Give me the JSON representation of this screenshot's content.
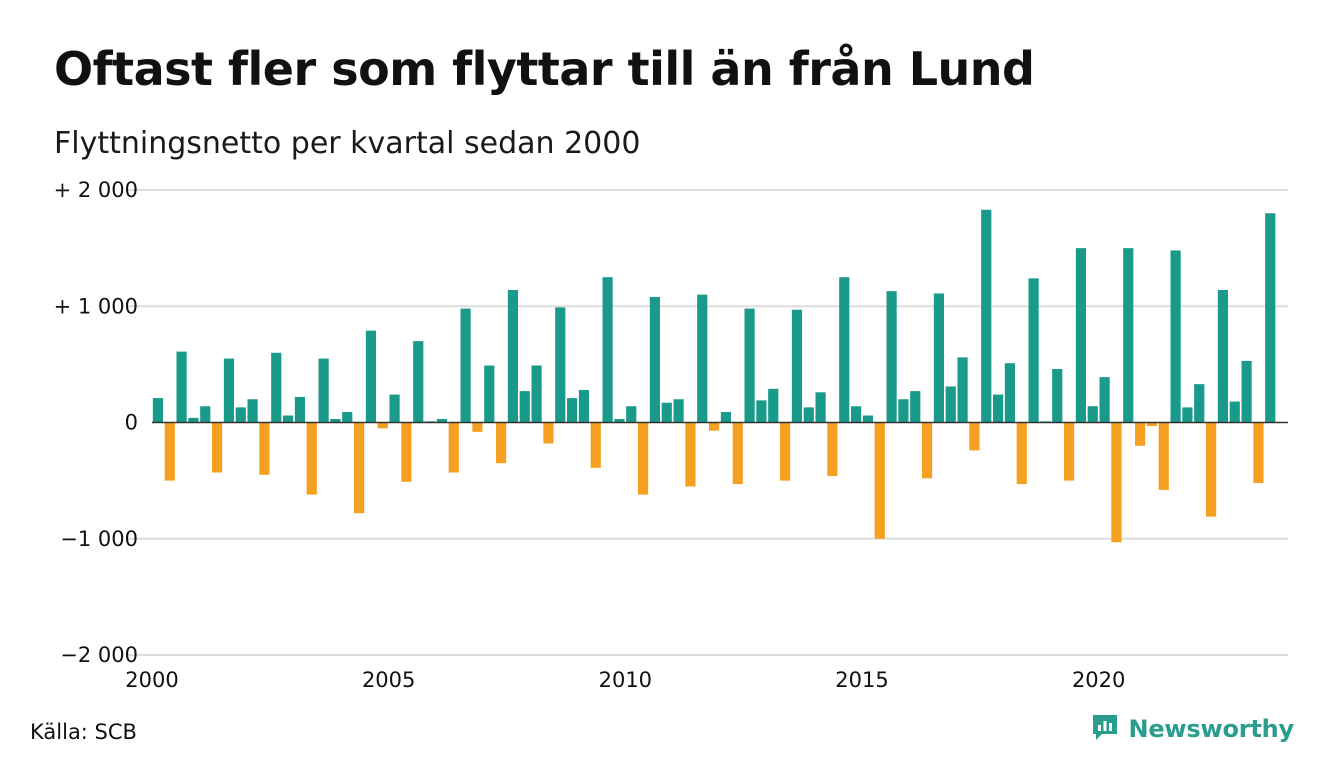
{
  "header": {
    "title": "Oftast fler som flyttar till än från Lund",
    "subtitle": "Flyttningsnetto per kvartal sedan 2000"
  },
  "footer": {
    "source": "Källa: SCB",
    "brand": "Newsworthy"
  },
  "colors": {
    "positive": "#1a9a8a",
    "negative": "#f5a020",
    "grid": "#dddddd",
    "brand": "#2a9d8f"
  },
  "chart_data": {
    "type": "bar",
    "title": "Oftast fler som flyttar till än från Lund",
    "subtitle": "Flyttningsnetto per kvartal sedan 2000",
    "xlabel": "",
    "ylabel": "",
    "ylim": [
      -2000,
      2000
    ],
    "xlim": [
      2000,
      2024
    ],
    "grid": true,
    "legend": "none",
    "y_ticks": [
      {
        "value": 2000,
        "label": "+ 2 000"
      },
      {
        "value": 1000,
        "label": "+ 1 000"
      },
      {
        "value": 0,
        "label": "0"
      },
      {
        "value": -1000,
        "label": "−1 000"
      },
      {
        "value": -2000,
        "label": "−2 000"
      }
    ],
    "x_ticks": [
      {
        "value": 2000,
        "label": "2000"
      },
      {
        "value": 2005,
        "label": "2005"
      },
      {
        "value": 2010,
        "label": "2010"
      },
      {
        "value": 2015,
        "label": "2015"
      },
      {
        "value": 2020,
        "label": "2020"
      }
    ],
    "quarters": [
      "2000-Q1",
      "2000-Q2",
      "2000-Q3",
      "2000-Q4",
      "2001-Q1",
      "2001-Q2",
      "2001-Q3",
      "2001-Q4",
      "2002-Q1",
      "2002-Q2",
      "2002-Q3",
      "2002-Q4",
      "2003-Q1",
      "2003-Q2",
      "2003-Q3",
      "2003-Q4",
      "2004-Q1",
      "2004-Q2",
      "2004-Q3",
      "2004-Q4",
      "2005-Q1",
      "2005-Q2",
      "2005-Q3",
      "2005-Q4",
      "2006-Q1",
      "2006-Q2",
      "2006-Q3",
      "2006-Q4",
      "2007-Q1",
      "2007-Q2",
      "2007-Q3",
      "2007-Q4",
      "2008-Q1",
      "2008-Q2",
      "2008-Q3",
      "2008-Q4",
      "2009-Q1",
      "2009-Q2",
      "2009-Q3",
      "2009-Q4",
      "2010-Q1",
      "2010-Q2",
      "2010-Q3",
      "2010-Q4",
      "2011-Q1",
      "2011-Q2",
      "2011-Q3",
      "2011-Q4",
      "2012-Q1",
      "2012-Q2",
      "2012-Q3",
      "2012-Q4",
      "2013-Q1",
      "2013-Q2",
      "2013-Q3",
      "2013-Q4",
      "2014-Q1",
      "2014-Q2",
      "2014-Q3",
      "2014-Q4",
      "2015-Q1",
      "2015-Q2",
      "2015-Q3",
      "2015-Q4",
      "2016-Q1",
      "2016-Q2",
      "2016-Q3",
      "2016-Q4",
      "2017-Q1",
      "2017-Q2",
      "2017-Q3",
      "2017-Q4",
      "2018-Q1",
      "2018-Q2",
      "2018-Q3",
      "2018-Q4",
      "2019-Q1",
      "2019-Q2",
      "2019-Q3",
      "2019-Q4",
      "2020-Q1",
      "2020-Q2",
      "2020-Q3",
      "2020-Q4",
      "2021-Q1",
      "2021-Q2",
      "2021-Q3",
      "2021-Q4",
      "2022-Q1",
      "2022-Q2",
      "2022-Q3",
      "2022-Q4",
      "2023-Q1",
      "2023-Q2",
      "2023-Q3",
      "2023-Q4"
    ],
    "values": [
      210,
      -500,
      610,
      40,
      140,
      -430,
      550,
      130,
      200,
      -450,
      600,
      60,
      220,
      -620,
      550,
      30,
      90,
      -780,
      790,
      -50,
      240,
      -510,
      700,
      10,
      30,
      -430,
      980,
      -80,
      490,
      -350,
      1140,
      270,
      490,
      -180,
      990,
      210,
      280,
      -390,
      1250,
      30,
      140,
      -620,
      1080,
      170,
      200,
      -550,
      1100,
      -70,
      90,
      -530,
      980,
      190,
      290,
      -500,
      970,
      130,
      260,
      -460,
      1250,
      140,
      60,
      -1000,
      1130,
      200,
      270,
      -480,
      1110,
      310,
      560,
      -240,
      1830,
      240,
      510,
      -530,
      1240,
      10,
      460,
      -500,
      1500,
      140,
      390,
      -1030,
      1500,
      -200,
      -30,
      -580,
      1480,
      130,
      330,
      -810,
      1140,
      180,
      530,
      -520,
      1800,
      0
    ]
  }
}
